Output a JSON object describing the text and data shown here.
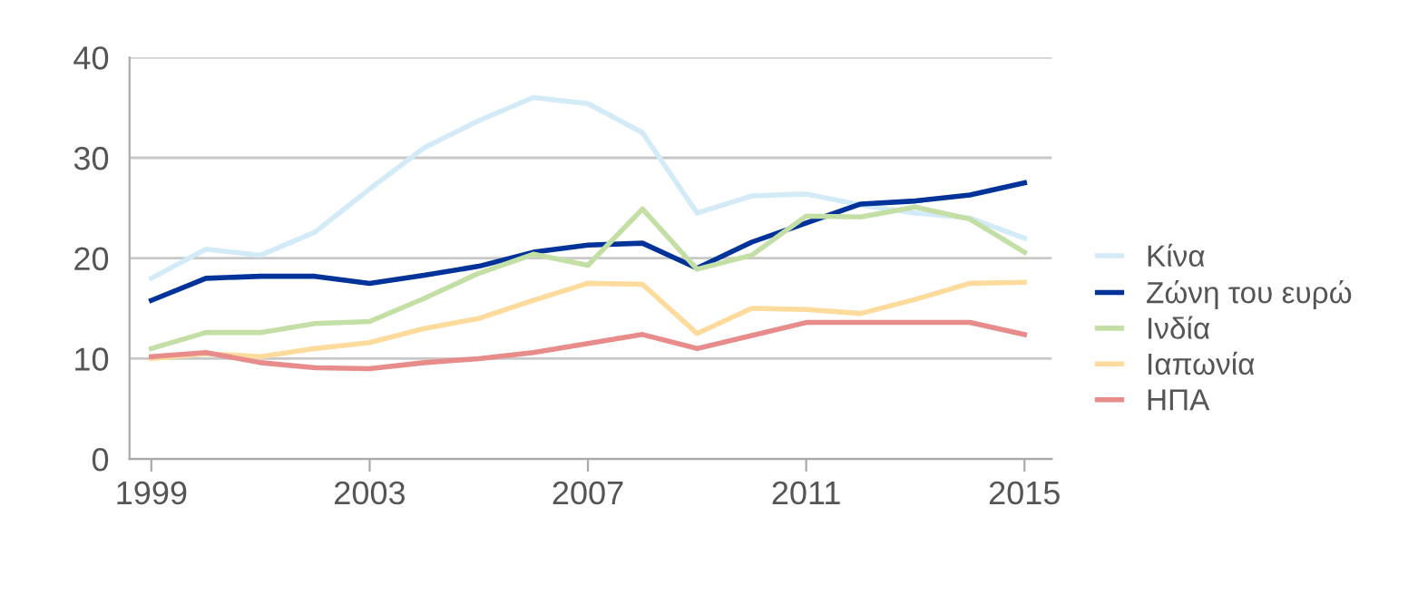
{
  "chart_data": {
    "type": "line",
    "x": [
      1999,
      2000,
      2001,
      2002,
      2003,
      2004,
      2005,
      2006,
      2007,
      2008,
      2009,
      2010,
      2011,
      2012,
      2013,
      2014,
      2015
    ],
    "series": [
      {
        "name": "Κίνα",
        "color": "#d3eaf7",
        "values": [
          18,
          20.9,
          20.3,
          22.6,
          26.9,
          31,
          33.7,
          36,
          35.4,
          32.5,
          24.5,
          26.2,
          26.4,
          25.3,
          24.5,
          24,
          22
        ]
      },
      {
        "name": "Ζώνη του ευρώ",
        "color": "#003399",
        "values": [
          15.8,
          18,
          18.2,
          18.2,
          17.5,
          18.3,
          19.2,
          20.6,
          21.3,
          21.5,
          19,
          21.6,
          23.5,
          25.4,
          25.7,
          26.3,
          27.5
        ]
      },
      {
        "name": "Ινδία",
        "color": "#c4dfa6",
        "values": [
          11,
          12.6,
          12.6,
          13.5,
          13.7,
          16,
          18.5,
          20.4,
          19.3,
          24.9,
          18.9,
          20.3,
          24.2,
          24.1,
          25.1,
          23.9,
          20.6
        ]
      },
      {
        "name": "Ιαπωνία",
        "color": "#fddb9c",
        "values": [
          10,
          10.5,
          10.2,
          11,
          11.6,
          13,
          14,
          15.8,
          17.5,
          17.4,
          12.5,
          15,
          14.9,
          14.5,
          15.9,
          17.5,
          17.6
        ]
      },
      {
        "name": "ΗΠΑ",
        "color": "#e88b8b",
        "values": [
          10.2,
          10.6,
          9.6,
          9.1,
          9,
          9.6,
          10,
          10.6,
          11.5,
          12.4,
          11,
          12.3,
          13.6,
          13.6,
          13.6,
          13.6,
          12.4
        ]
      }
    ],
    "xlim": [
      1998.6,
      2015.5
    ],
    "xticks": [
      1999,
      2003,
      2007,
      2011,
      2015
    ],
    "ylim": [
      0,
      40
    ],
    "yticks": [
      0,
      10,
      20,
      30,
      40
    ],
    "grid": "y",
    "legend": "right",
    "marker": "none",
    "line_style": "solid"
  }
}
